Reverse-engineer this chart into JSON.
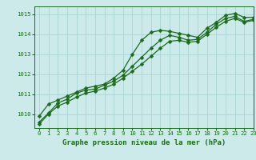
{
  "title": "Graphe pression niveau de la mer (hPa)",
  "background_color": "#cceaea",
  "grid_color": "#aad4d4",
  "line_color": "#1a6b1a",
  "marker_color": "#1a6b1a",
  "xlim": [
    -0.5,
    23
  ],
  "ylim": [
    1009.3,
    1015.4
  ],
  "yticks": [
    1010,
    1011,
    1012,
    1013,
    1014,
    1015
  ],
  "xticks": [
    0,
    1,
    2,
    3,
    4,
    5,
    6,
    7,
    8,
    9,
    10,
    11,
    12,
    13,
    14,
    15,
    16,
    17,
    18,
    19,
    20,
    21,
    22,
    23
  ],
  "series": [
    {
      "x": [
        0,
        1,
        2,
        3,
        4,
        5,
        6,
        7,
        8,
        9,
        10,
        11,
        12,
        13,
        14,
        15,
        16,
        17,
        18,
        19,
        20,
        21,
        22,
        23
      ],
      "y": [
        1009.9,
        1010.5,
        1010.7,
        1010.9,
        1011.1,
        1011.3,
        1011.4,
        1011.5,
        1011.8,
        1012.2,
        1013.0,
        1013.7,
        1014.1,
        1014.2,
        1014.15,
        1014.05,
        1013.95,
        1013.85,
        1014.3,
        1014.6,
        1014.95,
        1015.05,
        1014.85,
        1014.85
      ]
    },
    {
      "x": [
        0,
        1,
        2,
        3,
        4,
        5,
        6,
        7,
        8,
        9,
        10,
        11,
        12,
        13,
        14,
        15,
        16,
        17,
        18,
        19,
        20,
        21,
        22,
        23
      ],
      "y": [
        1009.6,
        1010.05,
        1010.55,
        1010.75,
        1011.05,
        1011.2,
        1011.25,
        1011.45,
        1011.65,
        1011.95,
        1012.4,
        1012.85,
        1013.3,
        1013.7,
        1013.95,
        1013.85,
        1013.7,
        1013.75,
        1014.1,
        1014.5,
        1014.8,
        1014.9,
        1014.65,
        1014.75
      ]
    },
    {
      "x": [
        0,
        1,
        2,
        3,
        4,
        5,
        6,
        7,
        8,
        9,
        10,
        11,
        12,
        13,
        14,
        15,
        16,
        17,
        18,
        19,
        20,
        21,
        22,
        23
      ],
      "y": [
        1009.5,
        1010.0,
        1010.4,
        1010.6,
        1010.85,
        1011.05,
        1011.15,
        1011.3,
        1011.5,
        1011.8,
        1012.15,
        1012.5,
        1012.9,
        1013.3,
        1013.65,
        1013.7,
        1013.6,
        1013.65,
        1014.0,
        1014.35,
        1014.65,
        1014.8,
        1014.6,
        1014.7
      ]
    }
  ],
  "markersize": 2.5,
  "linewidth": 0.9,
  "title_fontsize": 6.5,
  "tick_fontsize": 5.2
}
